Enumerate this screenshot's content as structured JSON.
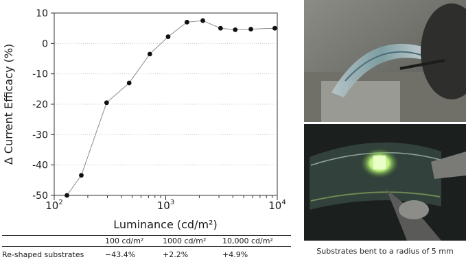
{
  "chart_data": {
    "type": "line",
    "title": "",
    "xlabel": "Luminance (cd/m²)",
    "ylabel": "Δ Current Efficacy (%)",
    "x_scale": "log",
    "xlim": [
      100,
      10000
    ],
    "ylim": [
      -50,
      10
    ],
    "x_ticks": [
      {
        "base": "10",
        "exp": "2"
      },
      {
        "base": "10",
        "exp": "3"
      },
      {
        "base": "10",
        "exp": "4"
      }
    ],
    "y_ticks": [
      "10",
      "0",
      "-10",
      "-20",
      "-30",
      "-40",
      "-50"
    ],
    "grid": true,
    "series": [
      {
        "x": [
          130,
          175,
          295,
          470,
          720,
          1050,
          1550,
          2150,
          3100,
          4200,
          5800,
          9500
        ],
        "y": [
          -50,
          -43.4,
          -19.5,
          -13,
          -3.5,
          2.2,
          7,
          7.5,
          5,
          4.5,
          4.7,
          5
        ]
      }
    ],
    "colors": {
      "line": "#8a8a8a",
      "marker": "#111111",
      "grid": "#cccccc",
      "axis": "#333333"
    }
  },
  "table": {
    "headers": [
      "",
      "100 cd/m²",
      "1000 cd/m²",
      "10,000 cd/m²"
    ],
    "rows": [
      [
        "Re-shaped substrates",
        "−43.4%",
        "+2.2%",
        "+4.9%"
      ]
    ]
  },
  "photos": {
    "caption": "Substrates bent to a radius of 5 mm"
  }
}
